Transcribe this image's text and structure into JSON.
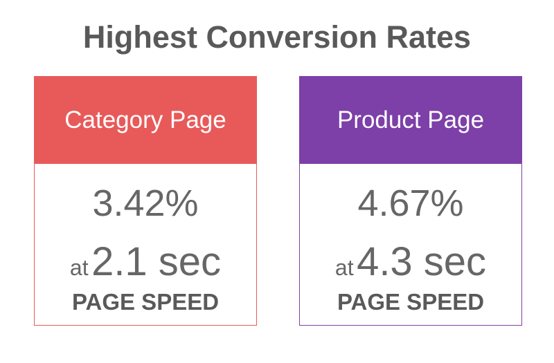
{
  "header": {
    "title": "Highest Conversion Rates"
  },
  "cards": [
    {
      "label": "Category Page",
      "rate": "3.42%",
      "prefix": "at",
      "speed": "2.1 sec",
      "caption": "PAGE SPEED",
      "color": "#e85a5a"
    },
    {
      "label": "Product Page",
      "rate": "4.67%",
      "prefix": "at",
      "speed": "4.3 sec",
      "caption": "PAGE SPEED",
      "color": "#7d3fa8"
    }
  ]
}
